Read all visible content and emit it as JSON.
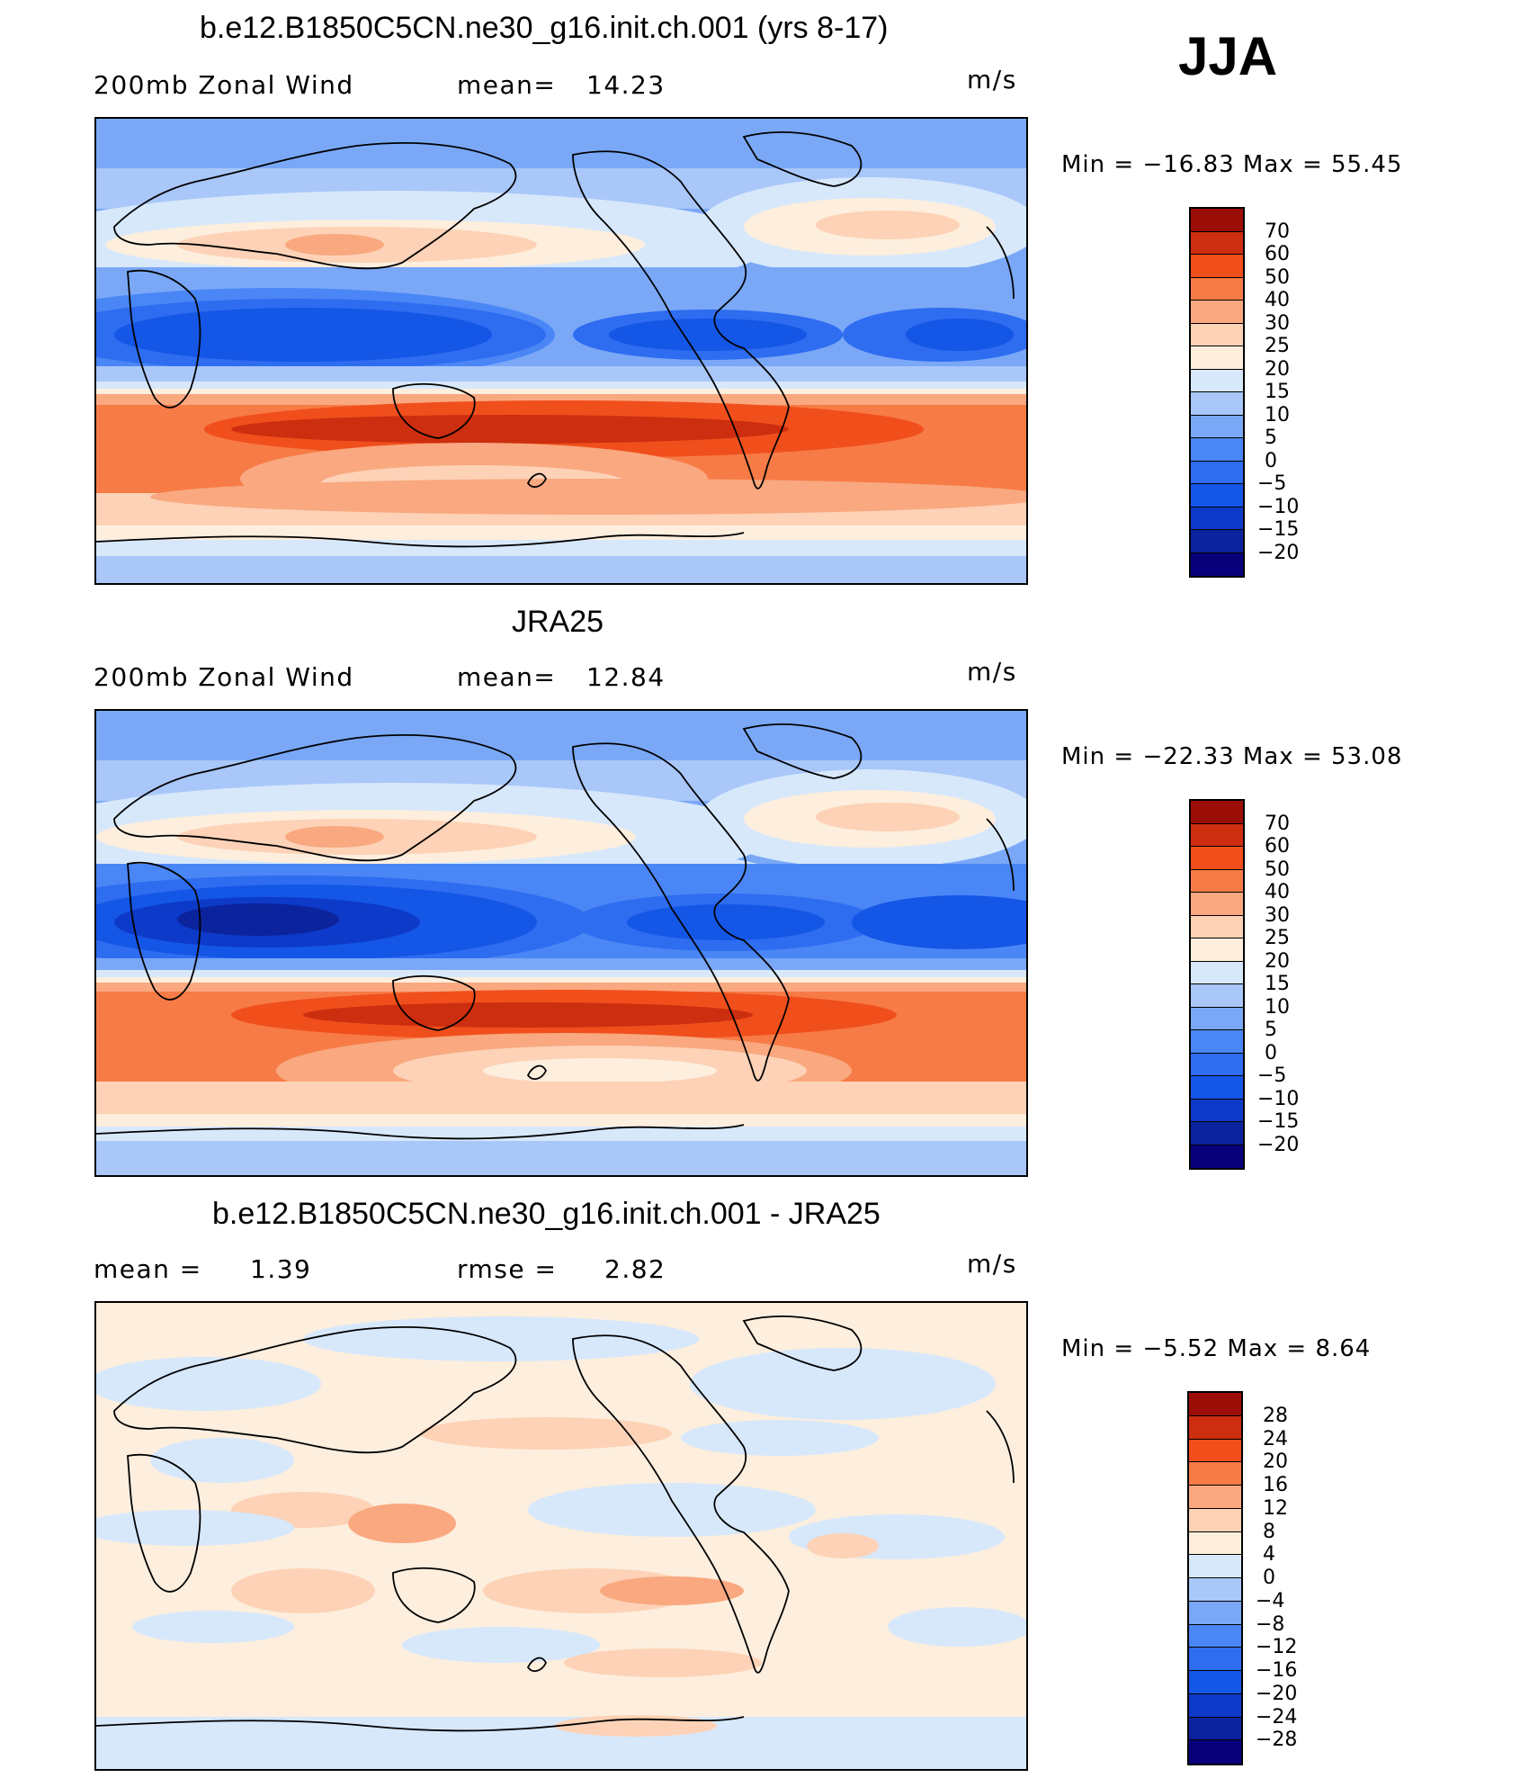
{
  "season": "JJA",
  "colors": {
    "full": [
      "#08007a",
      "#0b239c",
      "#0d3ac8",
      "#1456e6",
      "#2e6cf0",
      "#4a86f5",
      "#7aa8f7",
      "#a9c7f9",
      "#d7e8fb",
      "#fdeedd",
      "#fdd2b6",
      "#f9a880",
      "#f77b46",
      "#f04f1c",
      "#cc2e0f",
      "#9a0e07"
    ],
    "diff": [
      "#08007a",
      "#0b239c",
      "#0d3ac8",
      "#1456e6",
      "#2e6cf0",
      "#4a86f5",
      "#7aa8f7",
      "#a9c7f9",
      "#d7e8fb",
      "#fdeedd",
      "#fdd2b6",
      "#f9a880",
      "#f77b46",
      "#f04f1c",
      "#cc2e0f",
      "#9a0e07"
    ]
  },
  "panels": [
    {
      "title": "b.e12.B1850C5CN.ne30_g16.init.ch.001 (yrs 8-17)",
      "left_label": "200mb  Zonal  Wind",
      "stat_label": "mean=",
      "stat_value": "14.23",
      "units": "m/s",
      "min_label": "Min  =  −16.83  Max  =   55.45",
      "colorbar_ticks": [
        "70",
        "60",
        "50",
        "40",
        "30",
        "25",
        "20",
        "15",
        "10",
        "5",
        "0",
        "−5",
        "−10",
        "−15",
        "−20"
      ]
    },
    {
      "title": "JRA25",
      "left_label": "200mb  Zonal  Wind",
      "stat_label": "mean=",
      "stat_value": "12.84",
      "units": "m/s",
      "min_label": "Min  =  −22.33  Max  =   53.08",
      "colorbar_ticks": [
        "70",
        "60",
        "50",
        "40",
        "30",
        "25",
        "20",
        "15",
        "10",
        "5",
        "0",
        "−5",
        "−10",
        "−15",
        "−20"
      ]
    },
    {
      "title": "b.e12.B1850C5CN.ne30_g16.init.ch.001 - JRA25",
      "left_label": "mean  =",
      "left_value": "1.39",
      "stat_label": "rmse  =",
      "stat_value": "2.82",
      "units": "m/s",
      "min_label": "Min  =    −5.52  Max  =     8.64",
      "colorbar_ticks": [
        "28",
        "24",
        "20",
        "16",
        "12",
        "8",
        "4",
        "0",
        "−4",
        "−8",
        "−12",
        "−16",
        "−20",
        "−24",
        "−28"
      ]
    }
  ]
}
